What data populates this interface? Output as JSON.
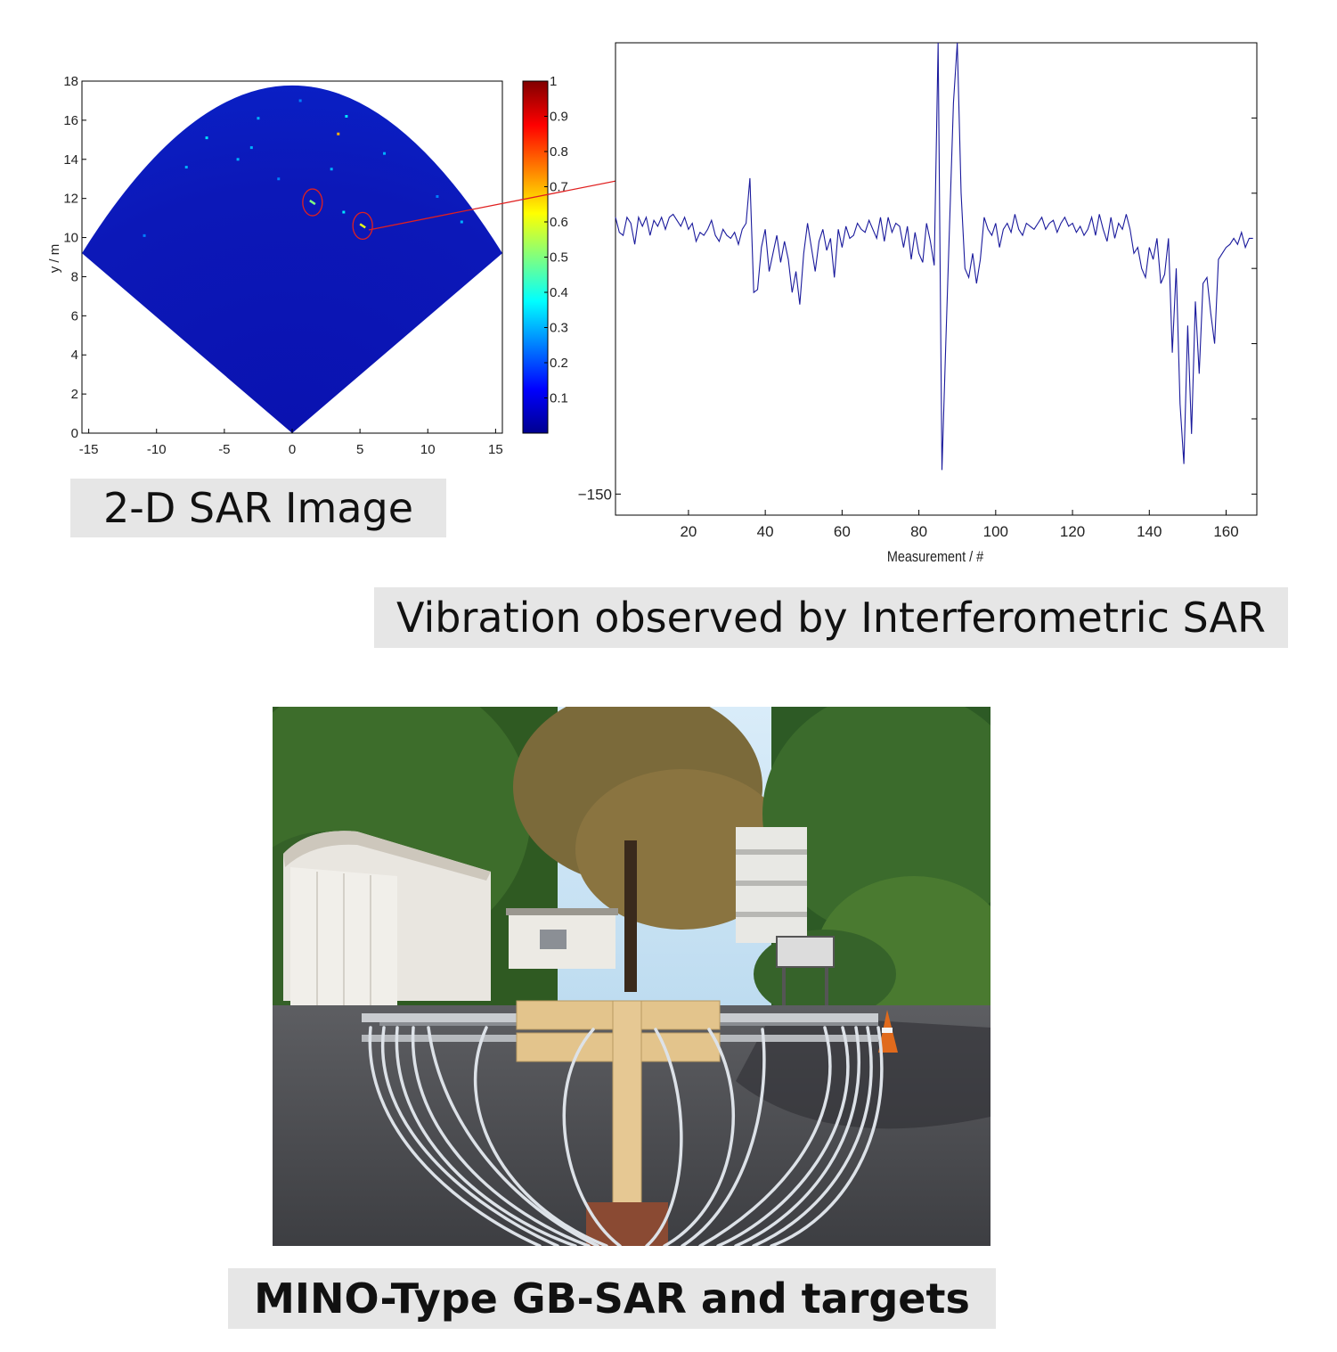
{
  "captions": {
    "sar_image": "2-D SAR Image",
    "vibration": "Vibration observed by Interferometric SAR",
    "photo": "MINO-Type GB-SAR and targets"
  },
  "colors": {
    "sar_background": "#0a14b4",
    "vibration_line": "#1a1a9c",
    "arrow": "#e02020",
    "caption_bg": "#e6e6e6"
  },
  "chart_data": [
    {
      "type": "heatmap",
      "title": "",
      "xlabel": "",
      "ylabel": "y / m",
      "xlim": [
        -15.5,
        15.5
      ],
      "ylim": [
        0,
        18
      ],
      "x_ticks": [
        "-15",
        "-10",
        "-5",
        "0",
        "5",
        "10",
        "15"
      ],
      "y_ticks": [
        "0",
        "2",
        "4",
        "6",
        "8",
        "10",
        "12",
        "14",
        "16",
        "18"
      ],
      "colorbar": {
        "range": [
          0,
          1
        ],
        "ticks": [
          "0.1",
          "0.2",
          "0.3",
          "0.4",
          "0.5",
          "0.6",
          "0.7",
          "0.8",
          "0.9",
          "1"
        ],
        "colormap": "jet"
      },
      "fan": {
        "apex": [
          0,
          0
        ],
        "edge_points": [
          [
            -15.5,
            9.2
          ],
          [
            15.5,
            9.2
          ]
        ],
        "radius_m": 18
      },
      "targets": [
        {
          "x": 1.5,
          "y": 11.8,
          "intensity": 0.5
        },
        {
          "x": 5.2,
          "y": 10.6,
          "intensity": 0.6
        }
      ],
      "speckles": [
        {
          "x": -6.3,
          "y": 15.1,
          "intensity": 0.35
        },
        {
          "x": -4.0,
          "y": 14.0,
          "intensity": 0.3
        },
        {
          "x": -2.5,
          "y": 16.1,
          "intensity": 0.3
        },
        {
          "x": 3.4,
          "y": 15.3,
          "intensity": 0.7
        },
        {
          "x": 4.0,
          "y": 16.2,
          "intensity": 0.35
        },
        {
          "x": 2.9,
          "y": 13.5,
          "intensity": 0.3
        },
        {
          "x": -1.0,
          "y": 13.0,
          "intensity": 0.25
        },
        {
          "x": -7.8,
          "y": 13.6,
          "intensity": 0.3
        },
        {
          "x": 6.8,
          "y": 14.3,
          "intensity": 0.3
        },
        {
          "x": 3.8,
          "y": 11.3,
          "intensity": 0.35
        },
        {
          "x": -3.0,
          "y": 14.6,
          "intensity": 0.3
        },
        {
          "x": 0.6,
          "y": 17.0,
          "intensity": 0.25
        },
        {
          "x": -10.9,
          "y": 10.1,
          "intensity": 0.25
        },
        {
          "x": 12.5,
          "y": 10.8,
          "intensity": 0.3
        },
        {
          "x": 10.7,
          "y": 12.1,
          "intensity": 0.25
        }
      ]
    },
    {
      "type": "line",
      "title": "",
      "xlabel": "Measurement / #",
      "ylabel": "",
      "xlim": [
        1,
        168
      ],
      "ylim": [
        -150,
        0
      ],
      "x_ticks": [
        "20",
        "40",
        "60",
        "80",
        "100",
        "120",
        "140",
        "160"
      ],
      "y_tick_labels": [
        "−150"
      ],
      "series": [
        {
          "values": [
            -58,
            -63,
            -64,
            -58,
            -60,
            -67,
            -58,
            -61,
            -58,
            -64,
            -59,
            -61,
            -58,
            -62,
            -58,
            -57,
            -59,
            -61,
            -58,
            -62,
            -60,
            -66,
            -63,
            -64,
            -62,
            -59,
            -64,
            -66,
            -62,
            -64,
            -65,
            -63,
            -67,
            -62,
            -60,
            -45,
            -83,
            -82,
            -68,
            -62,
            -76,
            -70,
            -64,
            -73,
            -66,
            -72,
            -83,
            -76,
            -87,
            -70,
            -60,
            -68,
            -76,
            -66,
            -62,
            -69,
            -65,
            -78,
            -62,
            -68,
            -61,
            -65,
            -64,
            -60,
            -62,
            -63,
            -59,
            -62,
            -65,
            -58,
            -66,
            -58,
            -63,
            -60,
            -61,
            -68,
            -61,
            -72,
            -63,
            -70,
            -73,
            -60,
            -66,
            -74,
            0,
            -142,
            -100,
            -60,
            -20,
            10,
            -50,
            -75,
            -78,
            -70,
            -80,
            -72,
            -58,
            -62,
            -64,
            -60,
            -68,
            -62,
            -60,
            -63,
            -57,
            -62,
            -64,
            -60,
            -61,
            -62,
            -60,
            -58,
            -62,
            -60,
            -59,
            -63,
            -60,
            -58,
            -61,
            -60,
            -63,
            -61,
            -64,
            -62,
            -58,
            -64,
            -57,
            -62,
            -66,
            -58,
            -65,
            -60,
            -62,
            -57,
            -62,
            -70,
            -68,
            -75,
            -78,
            -68,
            -72,
            -65,
            -80,
            -77,
            -65,
            -103,
            -75,
            -120,
            -140,
            -94,
            -130,
            -86,
            -110,
            -80,
            -78,
            -90,
            -100,
            -72,
            -70,
            -68,
            -67,
            -65,
            -67,
            -63,
            -68,
            -65,
            -65
          ]
        }
      ]
    }
  ]
}
